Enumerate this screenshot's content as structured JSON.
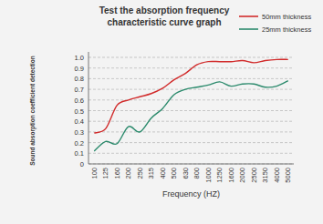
{
  "chart_data": {
    "type": "line",
    "title": "Test the absorption frequency characteristic curve graph",
    "x_label": "Frequency (HZ)",
    "y_label": "Sound absorption coefficient detection",
    "categories": [
      "100",
      "125",
      "160",
      "200",
      "250",
      "315",
      "400",
      "500",
      "630",
      "800",
      "1000",
      "1250",
      "1600",
      "2000",
      "2500",
      "3150",
      "4000",
      "5000"
    ],
    "series": [
      {
        "name": "50mm thickness",
        "color": "#d12b2b",
        "values": [
          0.29,
          0.33,
          0.55,
          0.6,
          0.63,
          0.66,
          0.71,
          0.79,
          0.85,
          0.93,
          0.96,
          0.96,
          0.96,
          0.97,
          0.95,
          0.97,
          0.98,
          0.98
        ]
      },
      {
        "name": "25mm thickness",
        "color": "#2b8a6c",
        "values": [
          0.12,
          0.21,
          0.19,
          0.35,
          0.3,
          0.43,
          0.52,
          0.65,
          0.7,
          0.72,
          0.74,
          0.77,
          0.73,
          0.75,
          0.75,
          0.72,
          0.73,
          0.78
        ]
      }
    ],
    "ylim": [
      0,
      1
    ],
    "yticks": [
      0,
      0.1,
      0.2,
      0.3,
      0.4,
      0.5,
      0.6,
      0.7,
      0.8,
      0.9,
      {
        "value": 1,
        "label": "1.0"
      }
    ],
    "grid": true,
    "legend": "top-right"
  }
}
